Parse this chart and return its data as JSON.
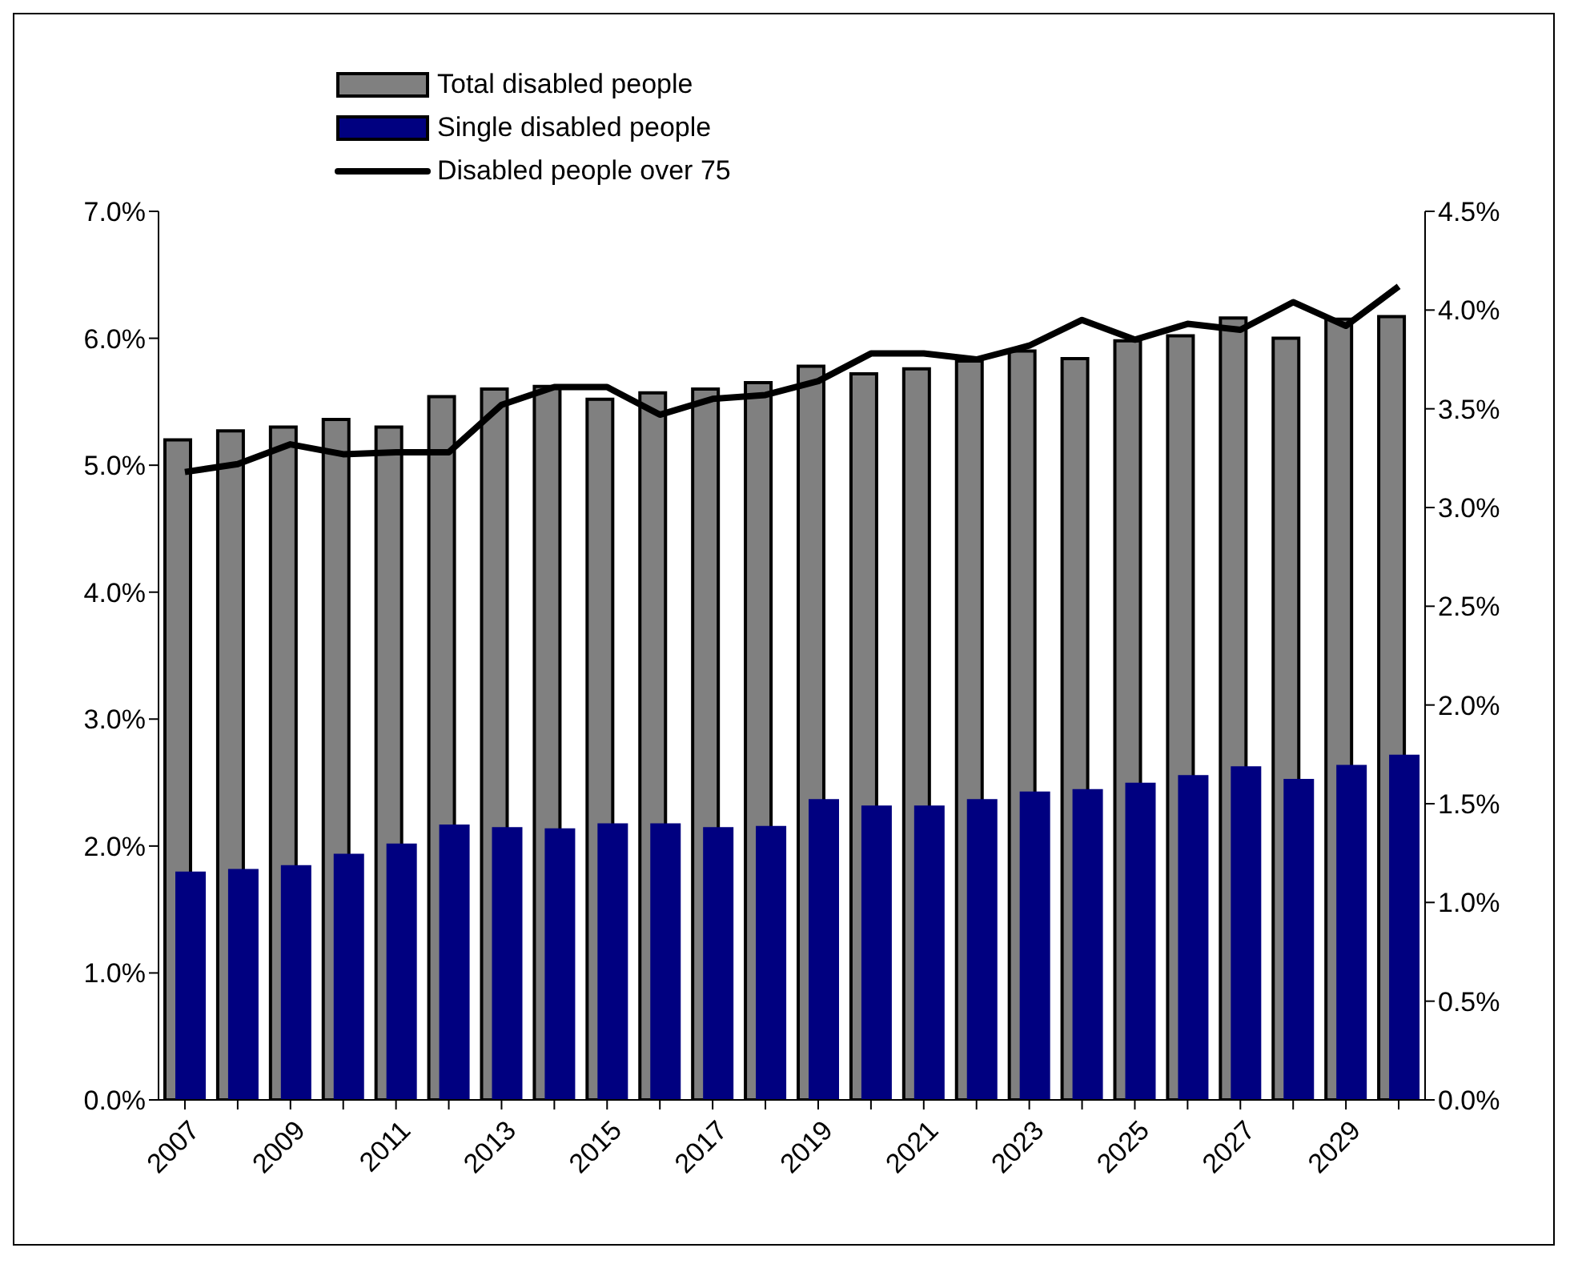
{
  "chart_data": {
    "type": "bar",
    "categories": [
      "2007",
      null,
      "2009",
      null,
      "2011",
      null,
      "2013",
      null,
      "2015",
      null,
      "2017",
      null,
      "2019",
      null,
      "2021",
      null,
      "2023",
      null,
      "2025",
      null,
      "2027",
      null,
      "2029",
      null
    ],
    "series": [
      {
        "name": "Total disabled people",
        "color": "#808080",
        "values": [
          5.2,
          5.27,
          5.3,
          5.36,
          5.3,
          5.54,
          5.6,
          5.62,
          5.52,
          5.57,
          5.6,
          5.65,
          5.78,
          5.72,
          5.76,
          5.82,
          5.9,
          5.84,
          5.98,
          6.02,
          6.16,
          6.0,
          6.15,
          6.17
        ]
      },
      {
        "name": "Single disabled people",
        "color": "#000080",
        "values": [
          1.78,
          1.8,
          1.83,
          1.92,
          2.0,
          2.15,
          2.13,
          2.12,
          2.16,
          2.16,
          2.13,
          2.14,
          2.35,
          2.3,
          2.3,
          2.35,
          2.41,
          2.43,
          2.48,
          2.54,
          2.61,
          2.51,
          2.62,
          2.7
        ]
      },
      {
        "name": "Disabled people over 75",
        "type": "line",
        "axis": "y2",
        "color": "#000000",
        "values": [
          3.18,
          3.22,
          3.32,
          3.27,
          3.28,
          3.28,
          3.52,
          3.61,
          3.61,
          3.47,
          3.55,
          3.57,
          3.64,
          3.78,
          3.78,
          3.75,
          3.82,
          3.95,
          3.85,
          3.93,
          3.9,
          4.04,
          3.92,
          4.12
        ]
      }
    ],
    "ylim": [
      0,
      7
    ],
    "yticks": [
      {
        "value": 0,
        "label": "0.0%"
      },
      {
        "value": 1,
        "label": "1.0%"
      },
      {
        "value": 2,
        "label": "2.0%"
      },
      {
        "value": 3,
        "label": "3.0%"
      },
      {
        "value": 4,
        "label": "4.0%"
      },
      {
        "value": 5,
        "label": "5.0%"
      },
      {
        "value": 6,
        "label": "6.0%"
      },
      {
        "value": 7,
        "label": "7.0%"
      }
    ],
    "y2lim": [
      0,
      4.5
    ],
    "y2ticks": [
      {
        "value": 0,
        "label": "0.0%"
      },
      {
        "value": 0.5,
        "label": "0.5%"
      },
      {
        "value": 1,
        "label": "1.0%"
      },
      {
        "value": 1.5,
        "label": "1.5%"
      },
      {
        "value": 2,
        "label": "2.0%"
      },
      {
        "value": 2.5,
        "label": "2.5%"
      },
      {
        "value": 3,
        "label": "3.0%"
      },
      {
        "value": 3.5,
        "label": "3.5%"
      },
      {
        "value": 4,
        "label": "4.0%"
      },
      {
        "value": 4.5,
        "label": "4.5%"
      }
    ],
    "legend": "top",
    "grid": false,
    "marker": "none",
    "line_style": "solid"
  }
}
